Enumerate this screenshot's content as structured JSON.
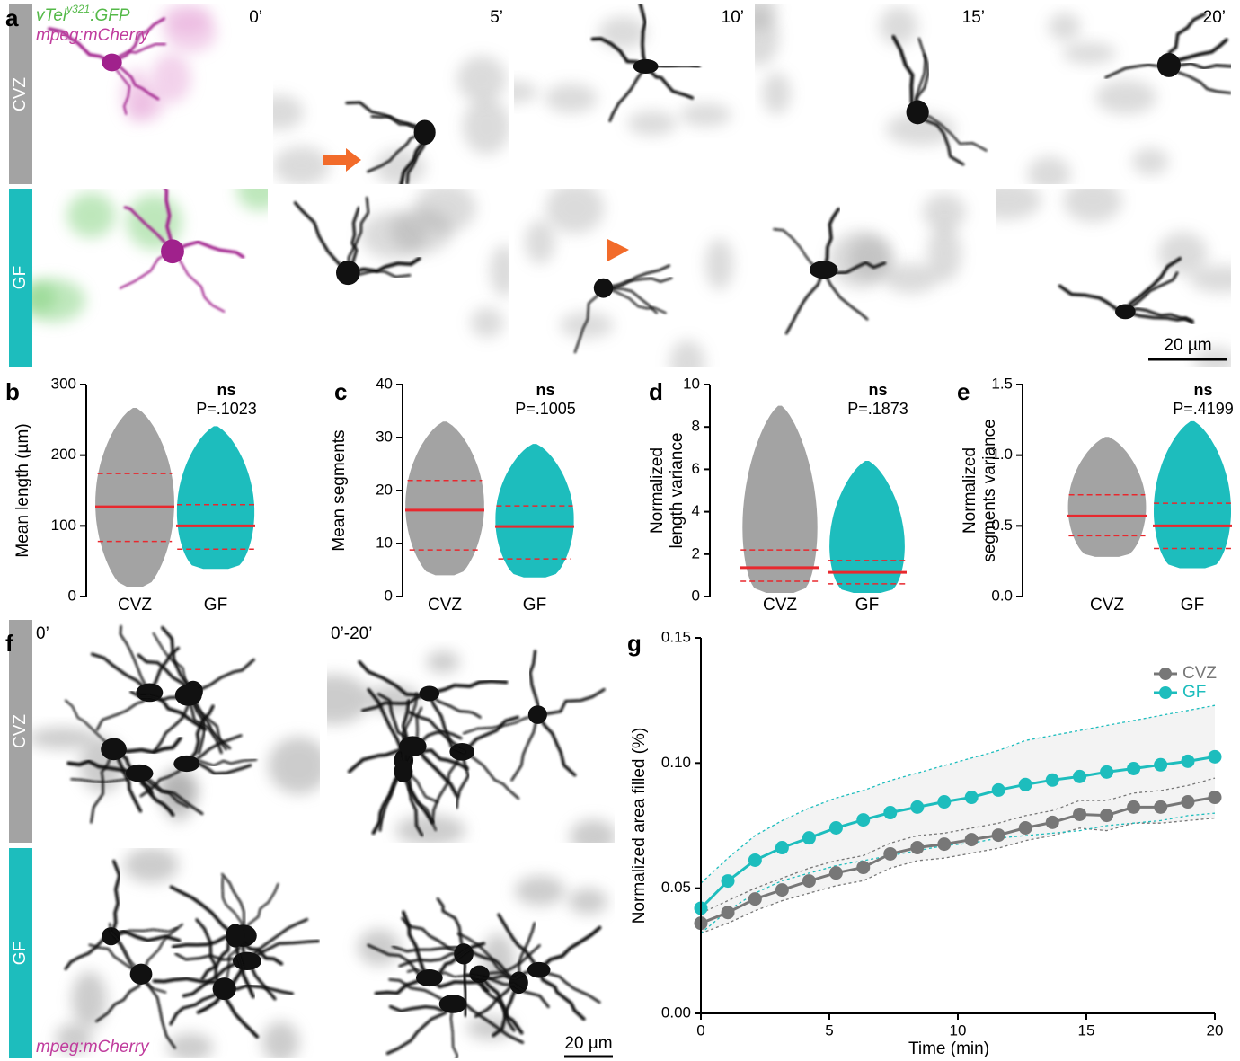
{
  "panel_a": {
    "letter": "a",
    "label_green": "vTel",
    "label_green_sup": "y321",
    "label_green_suffix": ":GFP",
    "label_magenta": "mpeg:mCherry",
    "rows": [
      "CVZ",
      "GF"
    ],
    "times": [
      "0’",
      "5’",
      "10’",
      "15’",
      "20’"
    ],
    "scale_bar": "20 µm"
  },
  "panel_f": {
    "letter": "f",
    "rows": [
      "CVZ",
      "GF"
    ],
    "columns": [
      "0’",
      "0’-20’"
    ],
    "label_magenta": "mpeg:mCherry",
    "scale_bar": "20 µm"
  },
  "chart_data": [
    {
      "type": "violin",
      "letter": "b",
      "ylabel": [
        "Mean length (µm)"
      ],
      "categories": [
        "CVZ",
        "GF"
      ],
      "colors": [
        "#a3a3a3",
        "#1dbdbd"
      ],
      "median_color": "#e8282e",
      "median": [
        127,
        100
      ],
      "q1": [
        78,
        67
      ],
      "q3": [
        174,
        130
      ],
      "min": [
        14,
        39
      ],
      "max": [
        267,
        241
      ],
      "ylim": [
        0,
        300
      ],
      "yticks": [
        0,
        100,
        200,
        300
      ],
      "annotation": "ns",
      "p_label": "P=.1023"
    },
    {
      "type": "violin",
      "letter": "c",
      "ylabel": [
        "Mean segments"
      ],
      "categories": [
        "CVZ",
        "GF"
      ],
      "colors": [
        "#a3a3a3",
        "#1dbdbd"
      ],
      "median_color": "#e8282e",
      "median": [
        16.3,
        13.2
      ],
      "q1": [
        8.8,
        7.1
      ],
      "q3": [
        21.9,
        17.1
      ],
      "min": [
        4,
        3.6
      ],
      "max": [
        33,
        28.8
      ],
      "ylim": [
        0,
        40
      ],
      "yticks": [
        0,
        10,
        20,
        30,
        40
      ],
      "annotation": "ns",
      "p_label": "P=.1005"
    },
    {
      "type": "violin",
      "letter": "d",
      "ylabel": [
        "Normalized",
        "length variance"
      ],
      "categories": [
        "CVZ",
        "GF"
      ],
      "colors": [
        "#a3a3a3",
        "#1dbdbd"
      ],
      "median_color": "#e8282e",
      "median": [
        1.36,
        1.14
      ],
      "q1": [
        0.72,
        0.6
      ],
      "q3": [
        2.2,
        1.7
      ],
      "min": [
        0.17,
        0.17
      ],
      "max": [
        9,
        6.4
      ],
      "ylim": [
        0,
        10
      ],
      "yticks": [
        0,
        2,
        4,
        6,
        8,
        10
      ],
      "annotation": "ns",
      "p_label": "P=.1873"
    },
    {
      "type": "violin",
      "letter": "e",
      "ylabel": [
        "Normalized",
        "segments variance"
      ],
      "categories": [
        "CVZ",
        "GF"
      ],
      "colors": [
        "#a3a3a3",
        "#1dbdbd"
      ],
      "median_color": "#e8282e",
      "median": [
        0.57,
        0.5
      ],
      "q1": [
        0.43,
        0.34
      ],
      "q3": [
        0.72,
        0.66
      ],
      "min": [
        0.28,
        0.2
      ],
      "max": [
        1.13,
        1.24
      ],
      "ylim": [
        0,
        1.5
      ],
      "yticks": [
        {
          "value": 0,
          "label": "0.0"
        },
        {
          "value": 0.5,
          "label": "0.5"
        },
        {
          "value": 1,
          "label": "1.0"
        },
        {
          "value": 1.5,
          "label": "1.5"
        }
      ],
      "annotation": "ns",
      "p_label": "P=.4199"
    },
    {
      "type": "line",
      "letter": "g",
      "xlabel": "Time (min)",
      "ylabel": "Normalized area filled (%)",
      "legend": "top-right",
      "band_color": "#f3f3f3",
      "x": [
        0,
        1.05,
        2.11,
        3.16,
        4.21,
        5.26,
        6.32,
        7.37,
        8.42,
        9.47,
        10.53,
        11.58,
        12.63,
        13.68,
        14.74,
        15.79,
        16.84,
        17.89,
        18.95,
        20
      ],
      "series": [
        {
          "name": "CVZ",
          "color": "#777777",
          "values": [
            0.036,
            0.0403,
            0.0457,
            0.0493,
            0.0529,
            0.0561,
            0.0583,
            0.0637,
            0.0662,
            0.0676,
            0.0694,
            0.0712,
            0.0741,
            0.0763,
            0.0795,
            0.0791,
            0.0824,
            0.0824,
            0.0845,
            0.0863
          ],
          "upper": [
            0.04,
            0.045,
            0.05,
            0.054,
            0.058,
            0.061,
            0.063,
            0.068,
            0.071,
            0.072,
            0.074,
            0.076,
            0.079,
            0.081,
            0.085,
            0.085,
            0.088,
            0.089,
            0.091,
            0.094
          ],
          "lower": [
            0.032,
            0.036,
            0.041,
            0.045,
            0.048,
            0.051,
            0.053,
            0.058,
            0.061,
            0.062,
            0.064,
            0.066,
            0.069,
            0.071,
            0.074,
            0.073,
            0.076,
            0.076,
            0.077,
            0.078
          ]
        },
        {
          "name": "GF",
          "color": "#1dbdbd",
          "values": [
            0.042,
            0.0529,
            0.0612,
            0.0662,
            0.0701,
            0.0741,
            0.0773,
            0.0802,
            0.0824,
            0.0845,
            0.0863,
            0.0892,
            0.0914,
            0.0932,
            0.0946,
            0.0964,
            0.0978,
            0.0993,
            0.1007,
            0.1025
          ],
          "upper": [
            0.052,
            0.062,
            0.071,
            0.077,
            0.082,
            0.086,
            0.089,
            0.093,
            0.096,
            0.099,
            0.102,
            0.105,
            0.109,
            0.111,
            0.113,
            0.115,
            0.117,
            0.119,
            0.121,
            0.123
          ],
          "lower": [
            0.032,
            0.041,
            0.048,
            0.053,
            0.056,
            0.059,
            0.061,
            0.063,
            0.065,
            0.067,
            0.068,
            0.07,
            0.071,
            0.072,
            0.073,
            0.075,
            0.076,
            0.077,
            0.079,
            0.08
          ]
        }
      ],
      "xlim": [
        0,
        20
      ],
      "xticks": [
        0,
        5,
        10,
        15,
        20
      ],
      "ylim": [
        0,
        0.15
      ],
      "yticks": [
        {
          "value": 0,
          "label": "0.00"
        },
        {
          "value": 0.05,
          "label": "0.05"
        },
        {
          "value": 0.1,
          "label": "0.10"
        },
        {
          "value": 0.15,
          "label": "0.15"
        }
      ]
    }
  ]
}
